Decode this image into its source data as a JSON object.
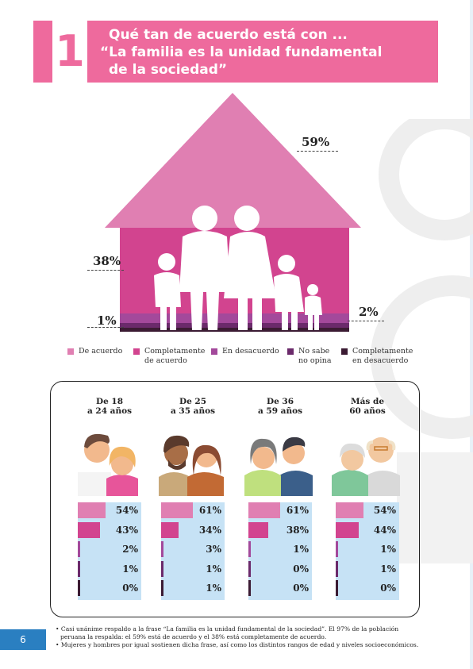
{
  "header": {
    "number": "1",
    "title_lines": [
      "Qué tan de acuerdo está con ...",
      "“La familia es la unidad fundamental",
      "de la sociedad”"
    ]
  },
  "colors": {
    "pink_main": "#ee6a9d",
    "de_acuerdo": "#e07fb2",
    "completamente_de_acuerdo": "#d2448f",
    "en_desacuerdo": "#a3499b",
    "no_sabe": "#6b2a6b",
    "completamente_desacuerdo": "#3b1b33",
    "bar_background": "#c6e2f5",
    "page_blue": "#2a7fc1"
  },
  "house": {
    "label_top": "59%",
    "label_left_mid": "38%",
    "label_left_low": "1%",
    "label_right_low": "2%"
  },
  "legend": [
    {
      "label": "De acuerdo",
      "color": "#e07fb2"
    },
    {
      "label": "Completamente de acuerdo",
      "color": "#d2448f"
    },
    {
      "label": "En desacuerdo",
      "color": "#a3499b"
    },
    {
      "label": "No sabe no opina",
      "color": "#6b2a6b"
    },
    {
      "label": "Completamente en desacuerdo",
      "color": "#3b1b33"
    }
  ],
  "chart_data": {
    "type": "bar",
    "title": "Qué tan de acuerdo está con ... “La familia es la unidad fundamental de la sociedad”",
    "overall": {
      "De acuerdo": 59,
      "Completamente de acuerdo": 38,
      "En desacuerdo": 2,
      "No sabe no opina": 1,
      "Completamente en desacuerdo": 1
    },
    "categories": [
      "De acuerdo",
      "Completamente de acuerdo",
      "En desacuerdo",
      "No sabe no opina",
      "Completamente en desacuerdo"
    ],
    "groups": [
      {
        "name": "De 18 a 24 años",
        "values": [
          54,
          43,
          2,
          1,
          0
        ],
        "labels": [
          "54%",
          "43%",
          "2%",
          "1%",
          "0%"
        ]
      },
      {
        "name": "De 25 a 35 años",
        "values": [
          61,
          34,
          3,
          1,
          1
        ],
        "labels": [
          "61%",
          "34%",
          "3%",
          "1%",
          "1%"
        ]
      },
      {
        "name": "De 36 a 59 años",
        "values": [
          61,
          38,
          1,
          0,
          0
        ],
        "labels": [
          "61%",
          "38%",
          "1%",
          "0%",
          "0%"
        ]
      },
      {
        "name": "Más de 60 años",
        "values": [
          54,
          44,
          1,
          1,
          0
        ],
        "labels": [
          "54%",
          "44%",
          "1%",
          "1%",
          "0%"
        ]
      }
    ],
    "ylim": [
      0,
      100
    ]
  },
  "age_titles": [
    [
      "De 18",
      "a 24 años"
    ],
    [
      "De 25",
      "a 35 años"
    ],
    [
      "De 36",
      "a 59 años"
    ],
    [
      "Más de",
      "60 años"
    ]
  ],
  "footer": {
    "page_number": "6",
    "notes": [
      "• Casi unánime respaldo a la frase “La familia es la unidad fundamental de la sociedad”. El 97% de la población",
      "peruana la respalda: el 59% está de acuerdo y el 38% está completamente de acuerdo.",
      "• Mujeres y hombres por igual sostienen dicha frase, así como los distintos rangos de edad y niveles socioeconómicos."
    ]
  }
}
